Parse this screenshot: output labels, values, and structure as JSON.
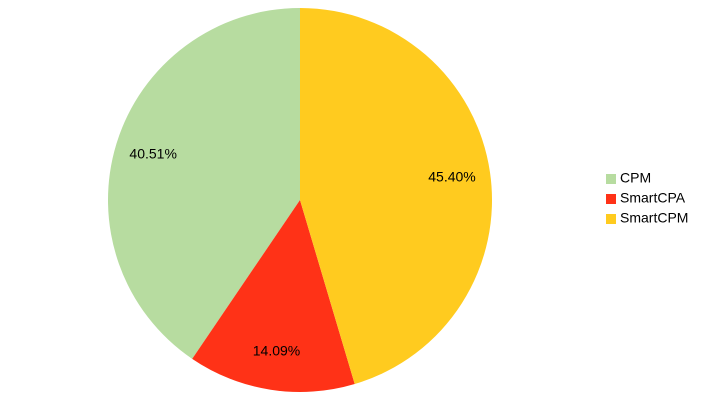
{
  "chart_data": {
    "type": "pie",
    "categories": [
      "CPM",
      "SmartCPA",
      "SmartCPM"
    ],
    "values": [
      40.51,
      14.09,
      45.4
    ],
    "value_labels": [
      "40.51%",
      "14.09%",
      "45.40%"
    ],
    "colors": [
      "#b7dca0",
      "#ff3217",
      "#ffcb1f"
    ],
    "legend": "right"
  }
}
